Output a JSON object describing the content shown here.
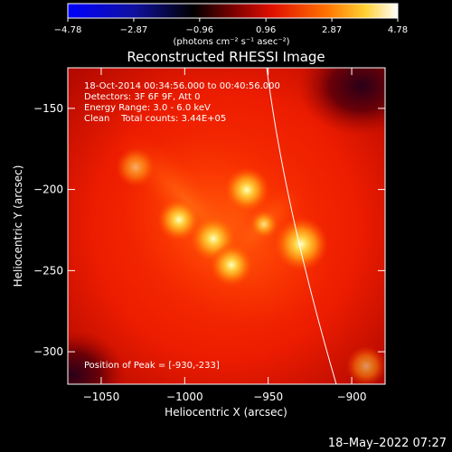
{
  "colorbar": {
    "tick_labels": [
      "−4.78",
      "−2.87",
      "−0.96",
      "0.96",
      "2.87",
      "4.78"
    ],
    "unit_label": "(photons cm⁻² s⁻¹ asec⁻²)",
    "colormap": "blue-black-red-yellow-white"
  },
  "plot": {
    "title": "Reconstructed RHESSI Image",
    "info_lines": [
      "18-Oct-2014 00:34:56.000 to 00:40:56.000",
      "Detectors: 3F 6F 9F, Att 0",
      "Energy Range: 3.0 - 6.0 keV",
      "Clean    Total counts: 3.44E+05"
    ],
    "peak_label": "Position of Peak = [-930,-233]",
    "x_axis_label": "Heliocentric X (arcsec)",
    "y_axis_label": "Heliocentric Y (arcsec)",
    "x_ticks": [
      "−1050",
      "−1000",
      "−950",
      "−900"
    ],
    "y_ticks": [
      "−150",
      "−200",
      "−250",
      "−300"
    ],
    "x_range": [
      -1070,
      -880
    ],
    "y_range": [
      -320,
      -125
    ]
  },
  "footer": {
    "timestamp": "18–May–2022 07:27"
  }
}
